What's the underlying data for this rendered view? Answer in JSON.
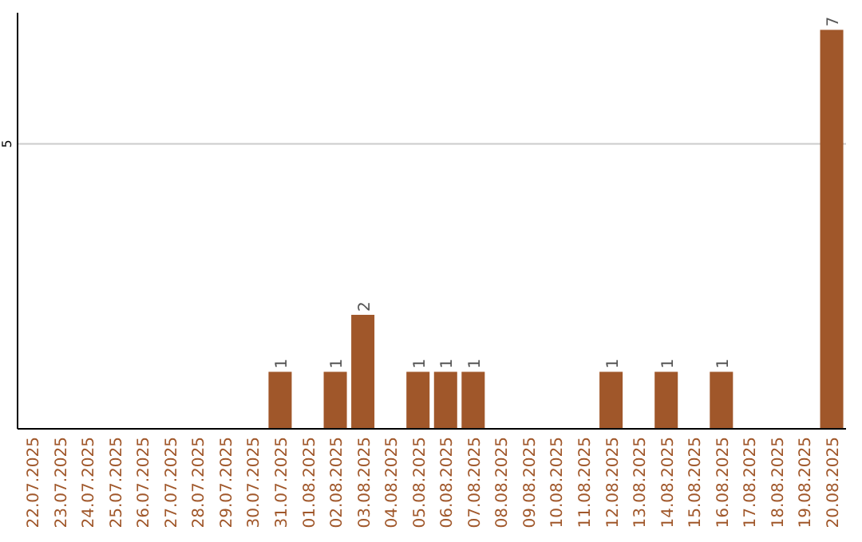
{
  "chart_data": {
    "type": "bar",
    "categories": [
      "22.07.2025",
      "23.07.2025",
      "24.07.2025",
      "25.07.2025",
      "26.07.2025",
      "27.07.2025",
      "28.07.2025",
      "29.07.2025",
      "30.07.2025",
      "31.07.2025",
      "01.08.2025",
      "02.08.2025",
      "03.08.2025",
      "04.08.2025",
      "05.08.2025",
      "06.08.2025",
      "07.08.2025",
      "08.08.2025",
      "09.08.2025",
      "10.08.2025",
      "11.08.2025",
      "12.08.2025",
      "13.08.2025",
      "14.08.2025",
      "15.08.2025",
      "16.08.2025",
      "17.08.2025",
      "18.08.2025",
      "19.08.2025",
      "20.08.2025"
    ],
    "values": [
      0,
      0,
      0,
      0,
      0,
      0,
      0,
      0,
      0,
      1,
      0,
      1,
      2,
      0,
      1,
      1,
      1,
      0,
      0,
      0,
      0,
      1,
      0,
      1,
      0,
      1,
      0,
      0,
      0,
      7
    ],
    "value_labels": [
      null,
      null,
      null,
      null,
      null,
      null,
      null,
      null,
      null,
      "1",
      null,
      "1",
      "2",
      null,
      "1",
      "1",
      "1",
      null,
      null,
      null,
      null,
      "1",
      null,
      "1",
      null,
      "1",
      null,
      null,
      null,
      "7"
    ],
    "color": "#a0572a",
    "ylim": [
      0,
      7.3
    ],
    "yticks": [
      5
    ],
    "grid": "y"
  }
}
